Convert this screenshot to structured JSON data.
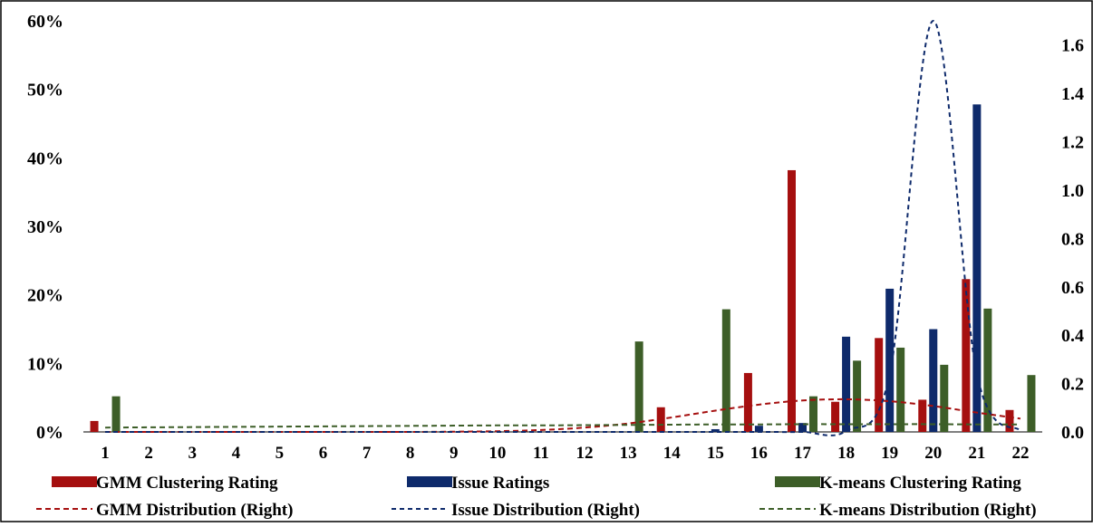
{
  "chart_data": {
    "type": "bar",
    "categories": [
      "1",
      "2",
      "3",
      "4",
      "5",
      "6",
      "7",
      "8",
      "9",
      "10",
      "11",
      "12",
      "13",
      "14",
      "15",
      "16",
      "17",
      "18",
      "19",
      "20",
      "21",
      "22"
    ],
    "y_left": {
      "ticks": [
        0,
        10,
        20,
        30,
        40,
        50,
        60
      ],
      "tick_labels": [
        "0%",
        "10%",
        "20%",
        "30%",
        "40%",
        "50%",
        "60%"
      ],
      "ylim": [
        0,
        60
      ]
    },
    "y_right": {
      "ticks": [
        0,
        0.2,
        0.4,
        0.6,
        0.8,
        1.0,
        1.2,
        1.4,
        1.6
      ],
      "tick_labels": [
        "0.0",
        "0.2",
        "0.4",
        "0.6",
        "0.8",
        "1.0",
        "1.2",
        "1.4",
        "1.6"
      ],
      "ylim": [
        0,
        1.7
      ]
    },
    "grid": false,
    "legend_placement": "bottom",
    "series": [
      {
        "name": "GMM Clustering Rating",
        "kind": "bar",
        "axis": "left",
        "color": "#a50f0f",
        "values": [
          1.6,
          0,
          0,
          0,
          0,
          0,
          0,
          0,
          0,
          0,
          0,
          0,
          0,
          3.6,
          0,
          8.6,
          38.2,
          4.4,
          13.7,
          4.7,
          22.3,
          3.2
        ]
      },
      {
        "name": "Issue Ratings",
        "kind": "bar",
        "axis": "left",
        "color": "#0e2a6b",
        "values": [
          0,
          0,
          0,
          0,
          0,
          0,
          0,
          0,
          0,
          0,
          0,
          0,
          0,
          0,
          0.4,
          0.9,
          1.3,
          13.9,
          20.9,
          15.0,
          47.8,
          0
        ]
      },
      {
        "name": "K-means Clustering Rating",
        "kind": "bar",
        "axis": "left",
        "color": "#3d5e28",
        "values": [
          5.2,
          0,
          0,
          0,
          0,
          0,
          0,
          0,
          0,
          0,
          0,
          0,
          13.2,
          0,
          17.9,
          0,
          5.2,
          10.4,
          12.3,
          9.8,
          18.0,
          8.3
        ]
      },
      {
        "name": "GMM Distribution (Right)",
        "kind": "line",
        "axis": "right",
        "color": "#a50f0f",
        "dash": "6,4",
        "x": [
          1,
          2,
          3,
          4,
          5,
          6,
          7,
          8,
          9,
          10,
          11,
          12,
          13,
          14,
          15,
          16,
          17,
          18,
          19,
          20,
          21,
          22
        ],
        "values": [
          0,
          0,
          0,
          0,
          0,
          0,
          0,
          0,
          0.001,
          0.003,
          0.008,
          0.018,
          0.035,
          0.06,
          0.088,
          0.113,
          0.13,
          0.135,
          0.127,
          0.107,
          0.08,
          0.055
        ]
      },
      {
        "name": "Issue Distribution (Right)",
        "kind": "line",
        "axis": "right",
        "color": "#0e2a6b",
        "dash": "5,4",
        "x": [
          1,
          2,
          3,
          4,
          5,
          6,
          7,
          8,
          9,
          10,
          11,
          12,
          13,
          14,
          15,
          16,
          17,
          18,
          19,
          20,
          21,
          22
        ],
        "values": [
          0,
          0,
          0,
          0,
          0,
          0,
          0,
          0,
          0,
          0,
          0,
          0,
          0,
          0,
          0,
          0,
          0,
          0.004,
          0.24,
          1.7,
          0.24,
          0.004
        ]
      },
      {
        "name": "K-means Distribution (Right)",
        "kind": "line",
        "axis": "right",
        "color": "#3d5e28",
        "dash": "6,4",
        "x": [
          1,
          2,
          3,
          4,
          5,
          6,
          7,
          8,
          9,
          10,
          11,
          12,
          13,
          14,
          15,
          16,
          17,
          18,
          19,
          20,
          21,
          22
        ],
        "values": [
          0.018,
          0.019,
          0.02,
          0.021,
          0.022,
          0.023,
          0.024,
          0.025,
          0.026,
          0.027,
          0.027,
          0.028,
          0.029,
          0.03,
          0.031,
          0.031,
          0.032,
          0.032,
          0.032,
          0.032,
          0.031,
          0.031
        ]
      }
    ],
    "legend_rows": [
      [
        "GMM Clustering Rating",
        "Issue Ratings",
        "K-means Clustering Rating"
      ],
      [
        "GMM Distribution (Right)",
        "Issue Distribution (Right)",
        "K-means Distribution (Right)"
      ]
    ]
  }
}
